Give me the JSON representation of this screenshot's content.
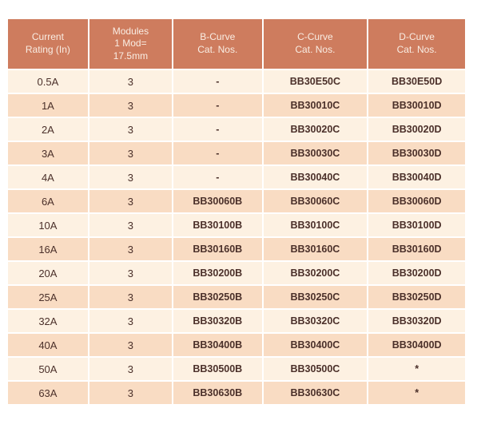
{
  "colors": {
    "page_bg": "#ffffff",
    "header_bg": "#ce7c5e",
    "header_text": "#f9ede3",
    "row_light": "#fdf1e2",
    "row_dark": "#f9dcc3",
    "body_text": "#4b302a"
  },
  "table": {
    "columns": [
      {
        "id": "current_rating",
        "label": "Current\nRating (In)"
      },
      {
        "id": "modules",
        "label": "Modules\n1 Mod=\n17.5mm"
      },
      {
        "id": "b_curve",
        "label": "B-Curve\nCat. Nos."
      },
      {
        "id": "c_curve",
        "label": "C-Curve\nCat. Nos."
      },
      {
        "id": "d_curve",
        "label": "D-Curve\nCat. Nos."
      }
    ],
    "rows": [
      [
        "0.5A",
        "3",
        "-",
        "BB30E50C",
        "BB30E50D"
      ],
      [
        "1A",
        "3",
        "-",
        "BB30010C",
        "BB30010D"
      ],
      [
        "2A",
        "3",
        "-",
        "BB30020C",
        "BB30020D"
      ],
      [
        "3A",
        "3",
        "-",
        "BB30030C",
        "BB30030D"
      ],
      [
        "4A",
        "3",
        "-",
        "BB30040C",
        "BB30040D"
      ],
      [
        "6A",
        "3",
        "BB30060B",
        "BB30060C",
        "BB30060D"
      ],
      [
        "10A",
        "3",
        "BB30100B",
        "BB30100C",
        "BB30100D"
      ],
      [
        "16A",
        "3",
        "BB30160B",
        "BB30160C",
        "BB30160D"
      ],
      [
        "20A",
        "3",
        "BB30200B",
        "BB30200C",
        "BB30200D"
      ],
      [
        "25A",
        "3",
        "BB30250B",
        "BB30250C",
        "BB30250D"
      ],
      [
        "32A",
        "3",
        "BB30320B",
        "BB30320C",
        "BB30320D"
      ],
      [
        "40A",
        "3",
        "BB30400B",
        "BB30400C",
        "BB30400D"
      ],
      [
        "50A",
        "3",
        "BB30500B",
        "BB30500C",
        "*"
      ],
      [
        "63A",
        "3",
        "BB30630B",
        "BB30630C",
        "*"
      ]
    ]
  }
}
